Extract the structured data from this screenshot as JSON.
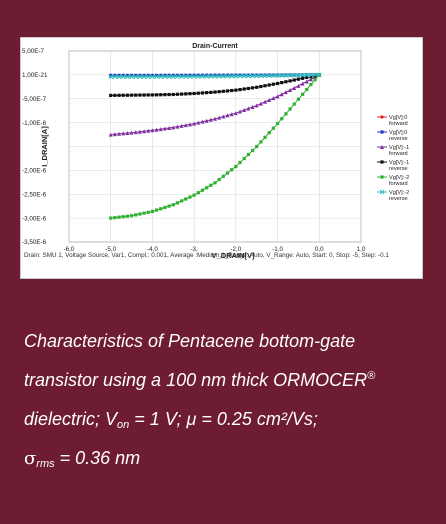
{
  "caption": {
    "line1": "Characteristics of Pentacene bottom-gate",
    "line2_pre": "transistor using a 100 nm thick ORMOCER",
    "line2_sup": "®",
    "line3_pre": "dielectric; V",
    "line3_sub": "on",
    "line3_post": " = 1 V; μ = 0.25 cm²/Vs;",
    "line4_sigma": "σ",
    "line4_sub": "rms",
    "line4_post": " = 0.36 nm"
  },
  "colors": {
    "background": "#6e1c31",
    "caption_text": "#ffffff",
    "chart_background": "#ffffff"
  },
  "chart_data": {
    "type": "line",
    "title": "Drain-Current",
    "xlabel": "V_DRAIN[V]",
    "ylabel": "I_DRAIN[A]",
    "xlim": [
      -6.0,
      1.0
    ],
    "ylim": [
      -3.5e-06,
      5e-07
    ],
    "x_ticks": [
      -6,
      -5,
      -4,
      -3,
      -2,
      -1,
      0,
      1
    ],
    "x_tick_labels": [
      "-6,0",
      "-5,0",
      "-4,0",
      "-3,",
      "-2,0",
      "-1,0",
      "0,0",
      "1,0"
    ],
    "y_ticks": [
      5e-07,
      0,
      -5e-07,
      -1e-06,
      -1.5e-06,
      -2e-06,
      -2.5e-06,
      -3e-06,
      -3.5e-06
    ],
    "y_tick_labels": [
      "5,00E-7",
      "1,00E-21",
      "-5,00E-7",
      "-1,00E-6",
      "",
      "-2,00E-6",
      "-2,50E-6",
      "-3,00E-6",
      "-3,50E-6"
    ],
    "grid": true,
    "legend_position": "right",
    "x": [
      -5.0,
      -4.5,
      -4.0,
      -3.5,
      -3.0,
      -2.5,
      -2.0,
      -1.5,
      -1.0,
      -0.5,
      0.0
    ],
    "series": [
      {
        "name": "Vg[V]:0 forward",
        "color": "#e02020",
        "marker": "circle",
        "values": [
          -2e-08,
          -2e-08,
          -1.9e-08,
          -1.8e-08,
          -1.7e-08,
          -1.6e-08,
          -1.4e-08,
          -1.2e-08,
          -9e-09,
          -5e-09,
          0
        ]
      },
      {
        "name": "Vg[V]:0 reverse",
        "color": "#2040c0",
        "marker": "square",
        "values": [
          -1e-08,
          -1e-08,
          -1e-08,
          -9e-09,
          -8e-09,
          -7e-09,
          -6e-09,
          -5e-09,
          -4e-09,
          -2e-09,
          0
        ]
      },
      {
        "name": "Vg[V]:-1 forward",
        "color": "#8030a0",
        "marker": "triangle",
        "values": [
          -1.25e-06,
          -1.21e-06,
          -1.16e-06,
          -1.1e-06,
          -1.02e-06,
          -9.2e-07,
          -8e-07,
          -6.4e-07,
          -4.5e-07,
          -2.3e-07,
          0
        ]
      },
      {
        "name": "Vg[V]:-1 reverse",
        "color": "#101010",
        "marker": "square",
        "values": [
          -4.3e-07,
          -4.25e-07,
          -4.2e-07,
          -4.1e-07,
          -3.9e-07,
          -3.6e-07,
          -3.2e-07,
          -2.6e-07,
          -1.8e-07,
          -9e-08,
          0
        ]
      },
      {
        "name": "Vg[V]:-2 forward",
        "color": "#30b030",
        "marker": "square",
        "values": [
          -3e-06,
          -2.95e-06,
          -2.86e-06,
          -2.72e-06,
          -2.52e-06,
          -2.26e-06,
          -1.92e-06,
          -1.5e-06,
          -1.02e-06,
          -5.1e-07,
          0
        ]
      },
      {
        "name": "Vg[V]:-2 reverse",
        "color": "#30c0c0",
        "marker": "cross",
        "values": [
          -4e-08,
          -4e-08,
          -3.8e-08,
          -3.6e-08,
          -3.3e-08,
          -3e-08,
          -2.6e-08,
          -2.1e-08,
          -1.5e-08,
          -8e-09,
          0
        ]
      }
    ],
    "footnote": "Drain: SMU 1, Voltage Source, Var1, Compl.: 0.001, Average :Medium, I_Range: Auto, V_Range: Auto, Start: 0, Stop: -5, Step: -0.1"
  }
}
